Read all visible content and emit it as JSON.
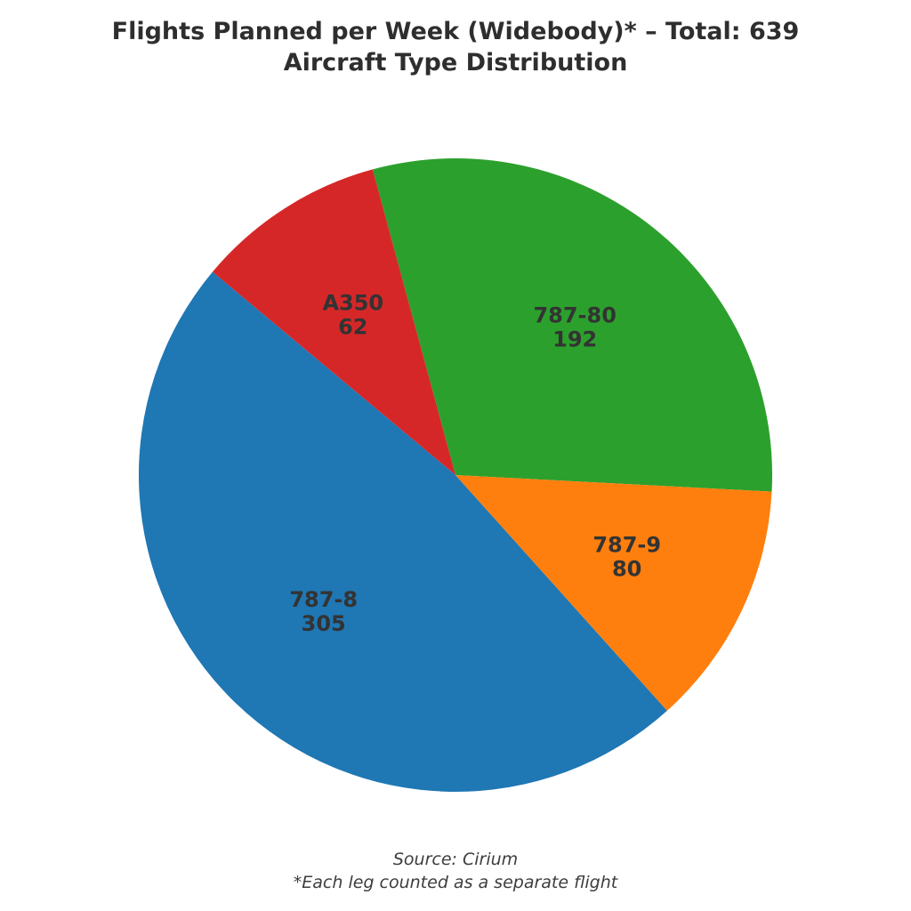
{
  "title": {
    "line1": "Flights Planned per Week (Widebody)* – Total: 639",
    "line2": "Aircraft Type Distribution"
  },
  "footer": {
    "line1": "Source: Cirium",
    "line2": "*Each leg counted as a separate flight"
  },
  "chart_data": {
    "type": "pie",
    "title": "Flights Planned per Week (Widebody)* – Total: 639\nAircraft Type Distribution",
    "total": 639,
    "slices": [
      {
        "label": "787-80",
        "value": 192,
        "color": "#2ca02c"
      },
      {
        "label": "A350",
        "value": 62,
        "color": "#d62728"
      },
      {
        "label": "787-8",
        "value": 305,
        "color": "#1f77b4"
      },
      {
        "label": "787-9",
        "value": 80,
        "color": "#ff7f0e"
      }
    ],
    "start_angle_deg": -3,
    "counterclockwise": true,
    "label_radius_fraction": 0.6,
    "legend": "none",
    "annotations": [
      "Source: Cirium",
      "*Each leg counted as a separate flight"
    ],
    "label_text_color": "#333333"
  }
}
